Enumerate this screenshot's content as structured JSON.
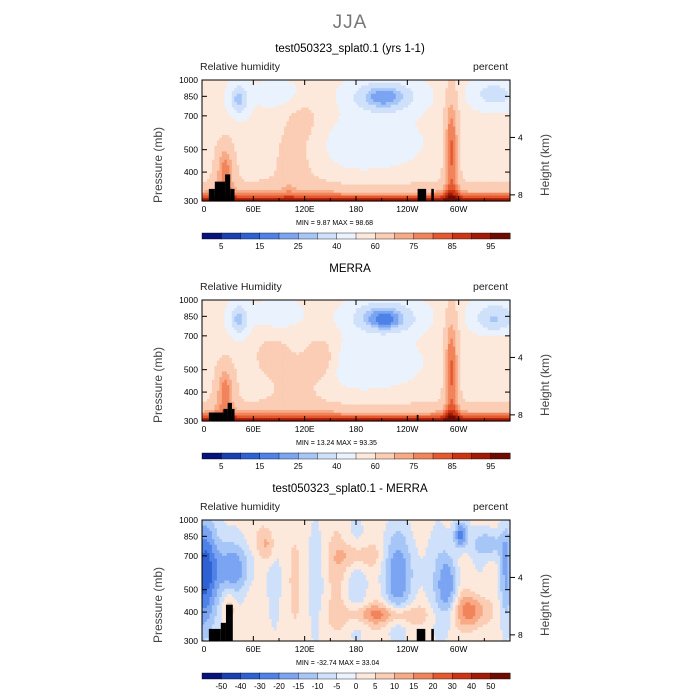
{
  "figure_title": "JJA",
  "chart_data": [
    {
      "type": "heatmap",
      "title": "test050323_splat0.1 (yrs 1-1)",
      "left_label": "Relative humidity",
      "right_label": "percent",
      "ylabel": "Pressure (mb)",
      "y2label": "Height (km)",
      "yticks": [
        "300",
        "400",
        "500",
        "700",
        "850",
        "1000"
      ],
      "y2ticks": [
        "8",
        "4"
      ],
      "xticks": [
        "0",
        "60E",
        "120E",
        "180",
        "120W",
        "60W"
      ],
      "xlim": [
        0,
        360
      ],
      "ylim": [
        1000,
        300
      ],
      "stats": "MIN =     9.87   MAX =    98.68",
      "colorbar": {
        "labels": [
          "5",
          "15",
          "25",
          "40",
          "60",
          "75",
          "85",
          "95"
        ],
        "colors": [
          "#08127a",
          "#1a3fb0",
          "#2e62d4",
          "#4f82e8",
          "#7ba4f2",
          "#a6c6f8",
          "#cfe0fb",
          "#eaf2fd",
          "#fde9dc",
          "#fbcdb4",
          "#f8aa86",
          "#f1845a",
          "#e4592f",
          "#cc3513",
          "#a31b07",
          "#6e0c02"
        ]
      }
    },
    {
      "type": "heatmap",
      "title": "MERRA",
      "left_label": "Relative Humidity",
      "right_label": "percent",
      "ylabel": "Pressure (mb)",
      "y2label": "Height (km)",
      "yticks": [
        "300",
        "400",
        "500",
        "700",
        "850",
        "1000"
      ],
      "y2ticks": [
        "8",
        "4"
      ],
      "xticks": [
        "0",
        "60E",
        "120E",
        "180",
        "120W",
        "60W"
      ],
      "xlim": [
        0,
        360
      ],
      "ylim": [
        1000,
        300
      ],
      "stats": "MIN =   13.24   MAX =    93.35",
      "colorbar": {
        "labels": [
          "5",
          "15",
          "25",
          "40",
          "60",
          "75",
          "85",
          "95"
        ],
        "colors": [
          "#08127a",
          "#1a3fb0",
          "#2e62d4",
          "#4f82e8",
          "#7ba4f2",
          "#a6c6f8",
          "#cfe0fb",
          "#eaf2fd",
          "#fde9dc",
          "#fbcdb4",
          "#f8aa86",
          "#f1845a",
          "#e4592f",
          "#cc3513",
          "#a31b07",
          "#6e0c02"
        ]
      }
    },
    {
      "type": "heatmap",
      "title": "test050323_splat0.1 - MERRA",
      "left_label": "Relative humidity",
      "right_label": "percent",
      "ylabel": "Pressure (mb)",
      "y2label": "Height (km)",
      "yticks": [
        "300",
        "400",
        "500",
        "700",
        "850",
        "1000"
      ],
      "y2ticks": [
        "8",
        "4"
      ],
      "xticks": [
        "0",
        "60E",
        "120E",
        "180",
        "120W",
        "60W"
      ],
      "xlim": [
        0,
        360
      ],
      "ylim": [
        1000,
        300
      ],
      "stats": "MIN =  -32.74   MAX =    33.04",
      "colorbar": {
        "labels": [
          "-50",
          "-40",
          "-30",
          "-20",
          "-15",
          "-10",
          "-5",
          "0",
          "5",
          "10",
          "15",
          "20",
          "30",
          "40",
          "50"
        ],
        "colors": [
          "#08127a",
          "#1a3fb0",
          "#2e62d4",
          "#4f82e8",
          "#7ba4f2",
          "#a6c6f8",
          "#cfe0fb",
          "#eaf2fd",
          "#fde9dc",
          "#fbcdb4",
          "#f8aa86",
          "#f1845a",
          "#e4592f",
          "#cc3513",
          "#a31b07",
          "#6e0c02"
        ]
      }
    }
  ]
}
